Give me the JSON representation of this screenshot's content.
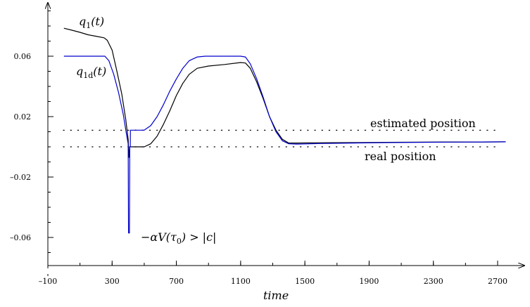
{
  "chart_data": {
    "type": "line",
    "xlabel": "time",
    "ylabel": "",
    "xlim": [
      -100,
      2820
    ],
    "ylim": [
      -0.072,
      0.11
    ],
    "x_ticks": [
      -100,
      300,
      700,
      1100,
      1500,
      1900,
      2300,
      2700
    ],
    "x_tick_labels": [
      "–100",
      "300",
      "700",
      "1100",
      "1500",
      "1900",
      "2300",
      "2700"
    ],
    "y_ticks": [
      0.06,
      0.02,
      -0.02,
      -0.06
    ],
    "y_tick_labels": [
      "0.06",
      "0.02",
      "–0.02",
      "–0.06"
    ],
    "grid": false,
    "reference_lines": [
      {
        "label": "estimated position",
        "y": 0.011
      },
      {
        "label": "real position",
        "y": 0.0
      }
    ],
    "series": [
      {
        "name": "q_1(t)",
        "color": "#000000",
        "points": [
          [
            0,
            0.0785
          ],
          [
            50,
            0.0772
          ],
          [
            100,
            0.0758
          ],
          [
            150,
            0.0742
          ],
          [
            200,
            0.0732
          ],
          [
            250,
            0.0722
          ],
          [
            270,
            0.0705
          ],
          [
            300,
            0.064
          ],
          [
            330,
            0.05
          ],
          [
            360,
            0.035
          ],
          [
            385,
            0.018
          ],
          [
            400,
            0.005
          ],
          [
            405,
            -0.007
          ],
          [
            410,
            0.0
          ],
          [
            420,
            0.0
          ],
          [
            500,
            0.0
          ],
          [
            540,
            0.002
          ],
          [
            580,
            0.007
          ],
          [
            620,
            0.015
          ],
          [
            660,
            0.024
          ],
          [
            700,
            0.034
          ],
          [
            740,
            0.042
          ],
          [
            780,
            0.048
          ],
          [
            830,
            0.052
          ],
          [
            900,
            0.0535
          ],
          [
            1000,
            0.0545
          ],
          [
            1100,
            0.0558
          ],
          [
            1130,
            0.0555
          ],
          [
            1160,
            0.052
          ],
          [
            1200,
            0.043
          ],
          [
            1240,
            0.032
          ],
          [
            1280,
            0.02
          ],
          [
            1320,
            0.011
          ],
          [
            1360,
            0.005
          ],
          [
            1400,
            0.0025
          ],
          [
            1450,
            0.0025
          ],
          [
            1600,
            0.0027
          ],
          [
            1800,
            0.0028
          ],
          [
            2000,
            0.003
          ],
          [
            2200,
            0.0031
          ],
          [
            2400,
            0.0032
          ],
          [
            2600,
            0.0032
          ],
          [
            2750,
            0.0033
          ]
        ]
      },
      {
        "name": "q_1d(t)",
        "color": "#0000cc",
        "points": [
          [
            0,
            0.06
          ],
          [
            100,
            0.06
          ],
          [
            200,
            0.06
          ],
          [
            255,
            0.06
          ],
          [
            280,
            0.057
          ],
          [
            310,
            0.048
          ],
          [
            340,
            0.036
          ],
          [
            370,
            0.021
          ],
          [
            390,
            0.008
          ],
          [
            400,
            0.002
          ],
          [
            402,
            -0.057
          ],
          [
            408,
            -0.057
          ],
          [
            410,
            0.0
          ],
          [
            413,
            0.0
          ],
          [
            414,
            0.011
          ],
          [
            420,
            0.011
          ],
          [
            500,
            0.011
          ],
          [
            540,
            0.014
          ],
          [
            580,
            0.02
          ],
          [
            620,
            0.028
          ],
          [
            660,
            0.037
          ],
          [
            700,
            0.045
          ],
          [
            740,
            0.052
          ],
          [
            780,
            0.057
          ],
          [
            830,
            0.0595
          ],
          [
            880,
            0.06
          ],
          [
            1000,
            0.06
          ],
          [
            1100,
            0.06
          ],
          [
            1130,
            0.0595
          ],
          [
            1160,
            0.055
          ],
          [
            1200,
            0.045
          ],
          [
            1240,
            0.033
          ],
          [
            1280,
            0.02
          ],
          [
            1320,
            0.01
          ],
          [
            1360,
            0.004
          ],
          [
            1400,
            0.002
          ],
          [
            1450,
            0.0018
          ],
          [
            1600,
            0.0022
          ],
          [
            1800,
            0.0025
          ],
          [
            2000,
            0.0028
          ],
          [
            2200,
            0.003
          ],
          [
            2400,
            0.0031
          ],
          [
            2600,
            0.0032
          ],
          [
            2750,
            0.0033
          ]
        ]
      }
    ]
  },
  "annotations": {
    "q1_label": "q1(t)",
    "q1d_label": "q1d(t)",
    "spike_label": "−αV(τ0) > |c|",
    "estimated_label": "estimated position",
    "real_label": "real position",
    "x_axis_label": "time"
  }
}
